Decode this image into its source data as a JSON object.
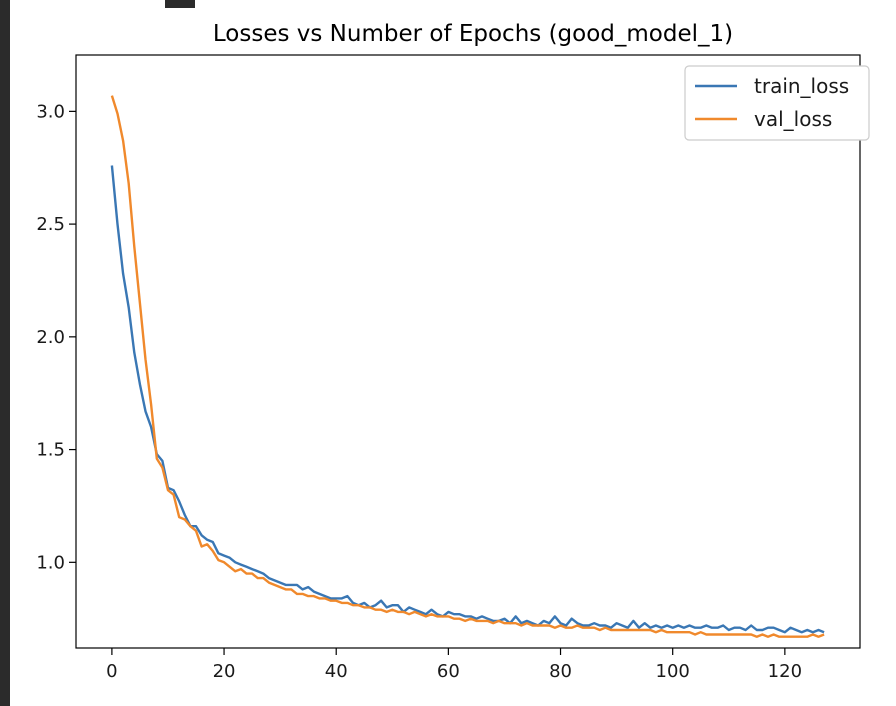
{
  "chart_data": {
    "type": "line",
    "title": "Losses vs Number of Epochs (good_model_1)",
    "xlabel": "",
    "ylabel": "",
    "xlim": [
      -6.4,
      133.4
    ],
    "ylim": [
      0.62,
      3.25
    ],
    "xticks": [
      0,
      20,
      40,
      60,
      80,
      100,
      120
    ],
    "yticks": [
      1.0,
      1.5,
      2.0,
      2.5,
      3.0
    ],
    "xtick_labels": [
      "0",
      "20",
      "40",
      "60",
      "80",
      "100",
      "120"
    ],
    "ytick_labels": [
      "1.0",
      "1.5",
      "2.0",
      "2.5",
      "3.0"
    ],
    "grid": false,
    "legend_position": "top-right",
    "series": [
      {
        "name": "train_loss",
        "color": "#3a77b4",
        "values": [
          2.76,
          2.5,
          2.28,
          2.13,
          1.93,
          1.79,
          1.67,
          1.6,
          1.48,
          1.45,
          1.33,
          1.32,
          1.27,
          1.21,
          1.16,
          1.16,
          1.12,
          1.1,
          1.09,
          1.04,
          1.03,
          1.02,
          1.0,
          0.99,
          0.98,
          0.97,
          0.96,
          0.95,
          0.93,
          0.92,
          0.91,
          0.9,
          0.9,
          0.9,
          0.88,
          0.89,
          0.87,
          0.86,
          0.85,
          0.84,
          0.84,
          0.84,
          0.85,
          0.82,
          0.81,
          0.82,
          0.8,
          0.81,
          0.83,
          0.8,
          0.81,
          0.81,
          0.78,
          0.8,
          0.79,
          0.78,
          0.77,
          0.79,
          0.77,
          0.76,
          0.78,
          0.77,
          0.77,
          0.76,
          0.76,
          0.75,
          0.76,
          0.75,
          0.74,
          0.74,
          0.75,
          0.73,
          0.76,
          0.73,
          0.74,
          0.73,
          0.72,
          0.74,
          0.73,
          0.76,
          0.73,
          0.72,
          0.75,
          0.73,
          0.72,
          0.72,
          0.73,
          0.72,
          0.72,
          0.71,
          0.73,
          0.72,
          0.71,
          0.74,
          0.71,
          0.73,
          0.71,
          0.72,
          0.71,
          0.72,
          0.71,
          0.72,
          0.71,
          0.72,
          0.71,
          0.71,
          0.72,
          0.71,
          0.71,
          0.72,
          0.7,
          0.71,
          0.71,
          0.7,
          0.72,
          0.7,
          0.7,
          0.71,
          0.71,
          0.7,
          0.69,
          0.71,
          0.7,
          0.69,
          0.7,
          0.69,
          0.7,
          0.69
        ]
      },
      {
        "name": "val_loss",
        "color": "#f0892c",
        "values": [
          3.07,
          2.99,
          2.87,
          2.68,
          2.4,
          2.15,
          1.9,
          1.7,
          1.46,
          1.42,
          1.32,
          1.3,
          1.2,
          1.19,
          1.16,
          1.14,
          1.07,
          1.08,
          1.05,
          1.01,
          1.0,
          0.98,
          0.96,
          0.97,
          0.95,
          0.95,
          0.93,
          0.93,
          0.91,
          0.9,
          0.89,
          0.88,
          0.88,
          0.86,
          0.86,
          0.85,
          0.85,
          0.84,
          0.84,
          0.83,
          0.83,
          0.82,
          0.82,
          0.81,
          0.81,
          0.8,
          0.8,
          0.79,
          0.79,
          0.78,
          0.79,
          0.78,
          0.78,
          0.77,
          0.78,
          0.77,
          0.76,
          0.77,
          0.76,
          0.76,
          0.76,
          0.75,
          0.75,
          0.74,
          0.75,
          0.74,
          0.74,
          0.74,
          0.73,
          0.74,
          0.73,
          0.73,
          0.73,
          0.72,
          0.73,
          0.72,
          0.72,
          0.72,
          0.72,
          0.71,
          0.72,
          0.71,
          0.71,
          0.72,
          0.71,
          0.71,
          0.71,
          0.7,
          0.71,
          0.7,
          0.7,
          0.7,
          0.7,
          0.7,
          0.7,
          0.7,
          0.7,
          0.69,
          0.7,
          0.69,
          0.69,
          0.69,
          0.69,
          0.69,
          0.68,
          0.69,
          0.68,
          0.68,
          0.68,
          0.68,
          0.68,
          0.68,
          0.68,
          0.68,
          0.68,
          0.67,
          0.68,
          0.67,
          0.68,
          0.67,
          0.67,
          0.67,
          0.67,
          0.67,
          0.67,
          0.68,
          0.67,
          0.68
        ]
      }
    ]
  }
}
